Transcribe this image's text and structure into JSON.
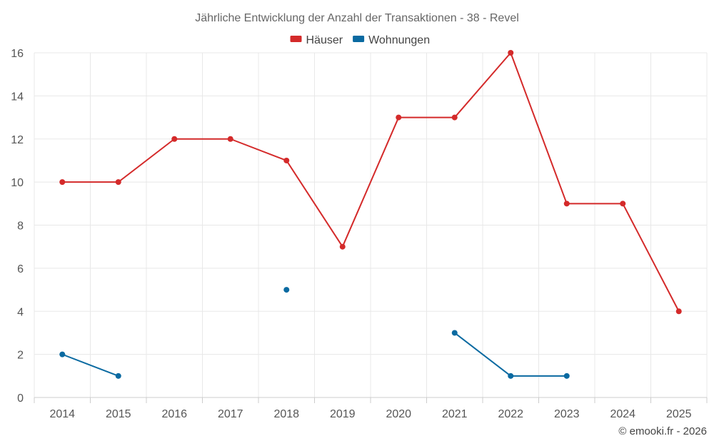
{
  "chart_data": {
    "type": "line",
    "title": "Jährliche Entwicklung der Anzahl der Transaktionen - 38 - Revel",
    "categories": [
      "2014",
      "2015",
      "2016",
      "2017",
      "2018",
      "2019",
      "2020",
      "2021",
      "2022",
      "2023",
      "2024",
      "2025"
    ],
    "ylim": [
      0,
      16
    ],
    "yticks": [
      0,
      2,
      4,
      6,
      8,
      10,
      12,
      14,
      16
    ],
    "legend_position": "top-center",
    "grid": true,
    "series": [
      {
        "name": "Häuser",
        "color": "#d42a2a",
        "values": [
          10,
          10,
          12,
          12,
          11,
          7,
          13,
          13,
          16,
          9,
          9,
          4
        ]
      },
      {
        "name": "Wohnungen",
        "color": "#0a6aa1",
        "values": [
          2,
          1,
          null,
          null,
          5,
          null,
          null,
          3,
          1,
          1,
          null,
          null
        ]
      }
    ]
  },
  "footer": {
    "credit": "© emooki.fr - 2026"
  }
}
